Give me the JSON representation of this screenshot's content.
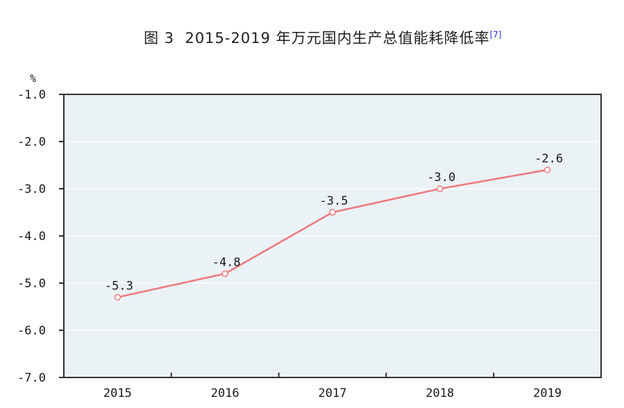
{
  "title": {
    "text": "图 3  2015-2019 年万元国内生产总值能耗降低率",
    "superscript": "[7]"
  },
  "chart_data": {
    "type": "line",
    "categories": [
      "2015",
      "2016",
      "2017",
      "2018",
      "2019"
    ],
    "series": [
      {
        "name": "万元国内生产总值能耗降低率",
        "values": [
          -5.3,
          -4.8,
          -3.5,
          -3.0,
          -2.6
        ],
        "point_labels": [
          "-5.3",
          "-4.8",
          "-3.5",
          "-3.0",
          "-2.6"
        ]
      }
    ],
    "ylabel": "%",
    "ylim": [
      -7.0,
      -1.0
    ],
    "yticks": [
      "-1.0",
      "-2.0",
      "-3.0",
      "-4.0",
      "-5.0",
      "-6.0",
      "-7.0"
    ],
    "ytick_values": [
      -1.0,
      -2.0,
      -3.0,
      -4.0,
      -5.0,
      -6.0,
      -7.0
    ],
    "grid": true,
    "legend": "none",
    "colors": {
      "line": "#ee7a7e",
      "marker_fill": "#ffffff",
      "plot_background": "#ebf2f6",
      "gridline": "#fcfdfd",
      "axis": "#2f2f33",
      "tick_text": "#17171f",
      "data_label_text": "#17171f"
    }
  }
}
